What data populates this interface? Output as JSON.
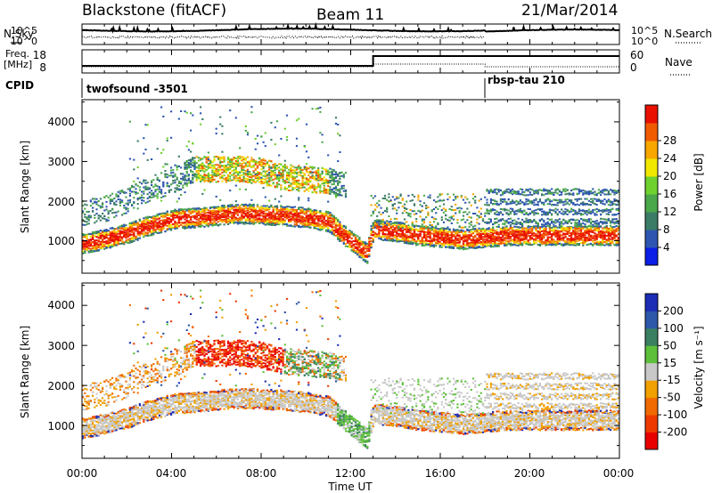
{
  "header": {
    "title_left": "Blackstone (fitACF)",
    "title_center": "Beam 11",
    "title_right": "21/Mar/2014"
  },
  "top_panels": {
    "nsky_label": "N.Sky",
    "nsearch_label": "N.Search",
    "noise_ticks_left": [
      "10^5",
      "10^0"
    ],
    "noise_ticks_right": [
      "10^5",
      "10^0"
    ],
    "freq_label_line1": "Freq.",
    "freq_label_line2": "[MHz]",
    "freq_ticks": [
      "18",
      "8"
    ],
    "nave_label": "Nave",
    "nave_ticks": [
      "60",
      "0"
    ],
    "cpid_label": "CPID",
    "cpid_segments": [
      {
        "name": "twofsound -3501",
        "start_hour": 0,
        "end_hour": 18
      },
      {
        "name": "rbsp-tau 210",
        "start_hour": 18,
        "end_hour": 24
      }
    ]
  },
  "axes": {
    "x_ticks": [
      "00:00",
      "04:00",
      "08:00",
      "12:00",
      "16:00",
      "20:00",
      "00:00"
    ],
    "x_label": "Time UT",
    "y_label": "Slant Range [km]",
    "y_ticks": [
      "1000",
      "2000",
      "3000",
      "4000"
    ]
  },
  "colorbars": {
    "power": {
      "label": "Power [dB]",
      "ticks": [
        "4",
        "8",
        "12",
        "16",
        "20",
        "24",
        "28"
      ],
      "colors": [
        "#0a1ee6",
        "#2e56b0",
        "#3b7c66",
        "#4aa84a",
        "#6fd12e",
        "#f1e800",
        "#f7a700",
        "#f15b00",
        "#e91000"
      ]
    },
    "velocity": {
      "label": "Velocity [m s⁻¹]",
      "ticks": [
        "200",
        "100",
        "50",
        "15",
        "-15",
        "-50",
        "-100",
        "-200"
      ],
      "colors": [
        "#1d2db6",
        "#2e58aa",
        "#3a8060",
        "#5ec03a",
        "#c8c8c8",
        "#f0a000",
        "#f06a00",
        "#ee3a00",
        "#e80000"
      ]
    }
  },
  "chart_data": [
    {
      "type": "heatmap",
      "panel": "power",
      "xlabel": "Time UT",
      "ylabel": "Slant Range [km]",
      "xlim": [
        0,
        24
      ],
      "ylim": [
        180,
        4560
      ],
      "colorbar_label": "Power [dB]",
      "colorbar_range": [
        0,
        30
      ],
      "bands": [
        {
          "name": "lower",
          "x": [
            0,
            1,
            2,
            3,
            4,
            5,
            6,
            7,
            8,
            9,
            10,
            11,
            12,
            12.7,
            13,
            14,
            15,
            16,
            17,
            18,
            19,
            20,
            21,
            22,
            23,
            24
          ],
          "y": [
            950,
            1050,
            1200,
            1400,
            1550,
            1600,
            1650,
            1700,
            1680,
            1650,
            1600,
            1500,
            1000,
            700,
            1300,
            1250,
            1150,
            1100,
            1050,
            1100,
            1150,
            1150,
            1150,
            1150,
            1150,
            1150
          ]
        },
        {
          "name": "upper",
          "x": [
            0,
            1,
            2,
            3,
            4,
            5,
            6,
            7,
            8,
            9,
            10,
            11,
            11.8
          ],
          "y": [
            1700,
            1800,
            2000,
            2300,
            2500,
            2800,
            2800,
            2800,
            2750,
            2600,
            2550,
            2500,
            2400
          ]
        }
      ]
    },
    {
      "type": "heatmap",
      "panel": "velocity",
      "xlabel": "Time UT",
      "ylabel": "Slant Range [km]",
      "xlim": [
        0,
        24
      ],
      "ylim": [
        180,
        4560
      ],
      "colorbar_label": "Velocity [m s⁻¹]",
      "colorbar_range": [
        -200,
        200
      ],
      "bands": [
        {
          "name": "lower",
          "x": [
            0,
            1,
            2,
            3,
            4,
            5,
            6,
            7,
            8,
            9,
            10,
            11,
            12,
            12.7,
            13,
            14,
            15,
            16,
            17,
            18,
            19,
            20,
            21,
            22,
            23,
            24
          ],
          "y": [
            950,
            1050,
            1200,
            1400,
            1550,
            1600,
            1650,
            1700,
            1680,
            1650,
            1600,
            1500,
            1000,
            700,
            1300,
            1250,
            1150,
            1100,
            1050,
            1100,
            1150,
            1150,
            1150,
            1150,
            1150,
            1150
          ]
        },
        {
          "name": "upper",
          "x": [
            0,
            1,
            2,
            3,
            4,
            5,
            6,
            7,
            8,
            9,
            10,
            11,
            11.8
          ],
          "y": [
            1700,
            1800,
            2000,
            2300,
            2500,
            2800,
            2800,
            2800,
            2750,
            2600,
            2550,
            2500,
            2400
          ]
        }
      ]
    }
  ]
}
